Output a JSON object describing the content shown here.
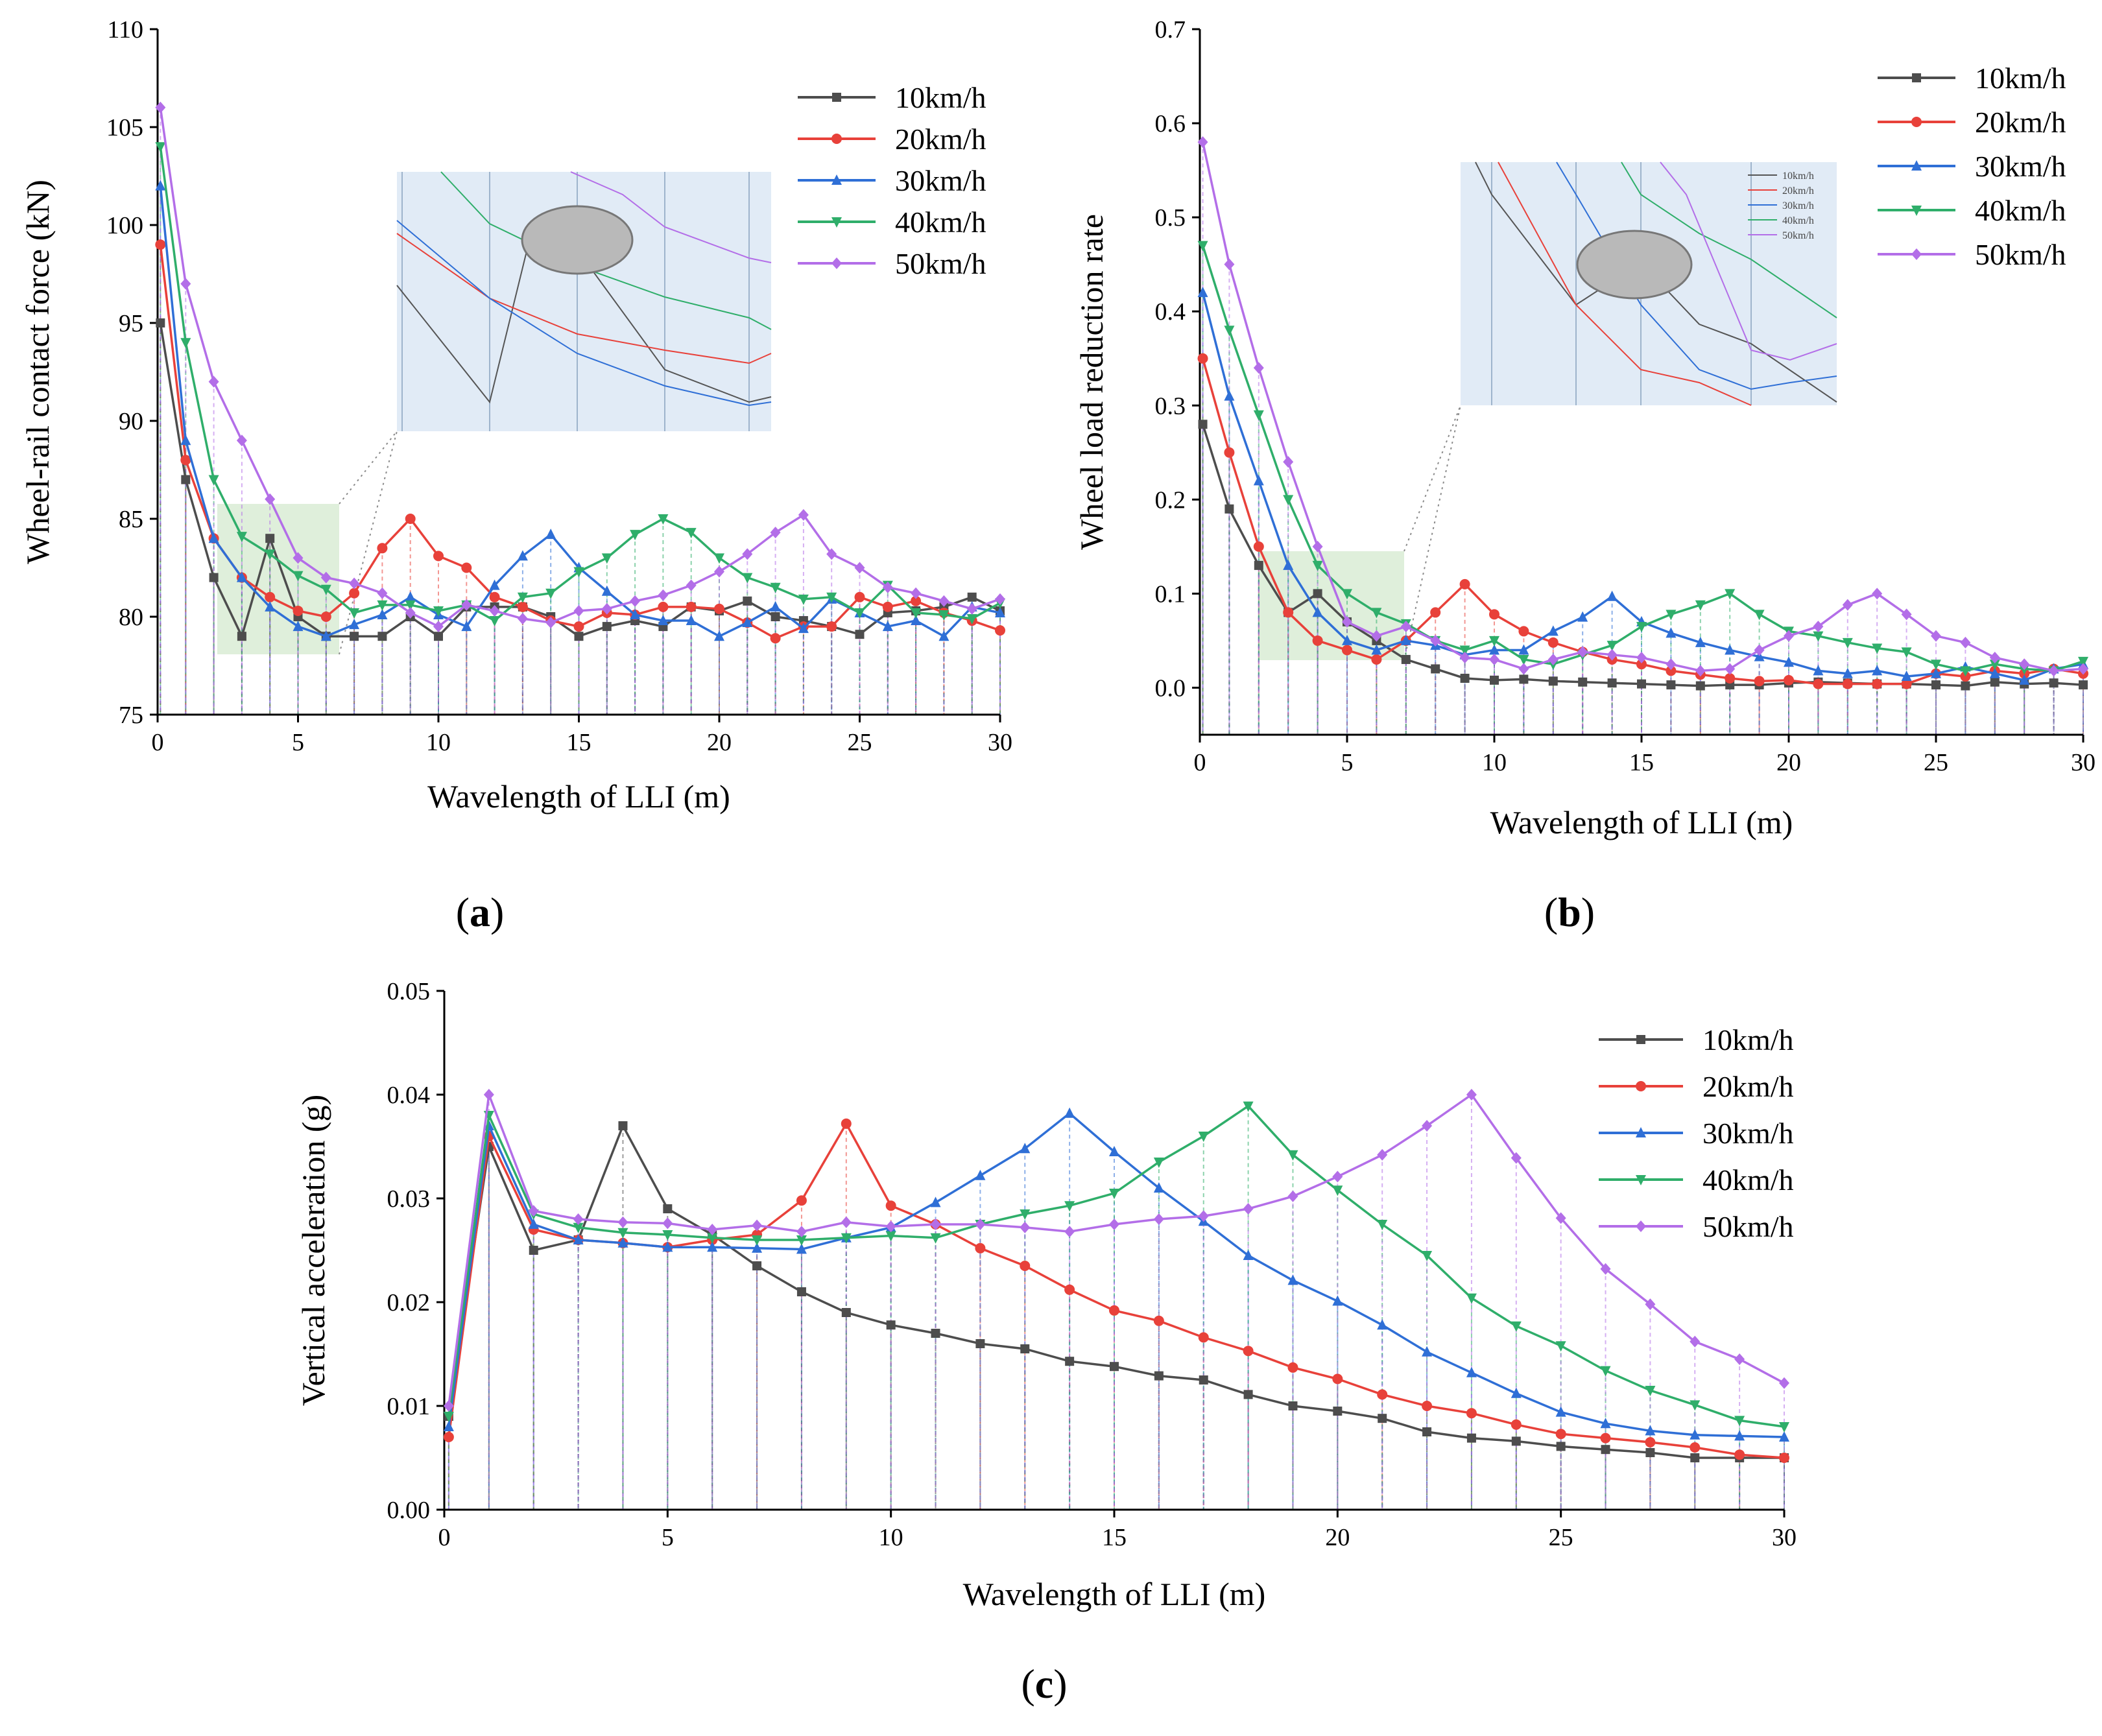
{
  "chart_data": [
    {
      "id": "a",
      "type": "line",
      "panel_label": "a",
      "xlabel": "Wavelength of LLI (m)",
      "ylabel": "Wheel-rail contact force (kN)",
      "xlim": [
        0,
        30
      ],
      "ylim": [
        75,
        110
      ],
      "xticks": [
        0,
        5,
        10,
        15,
        20,
        25,
        30
      ],
      "yticks": [
        75,
        80,
        85,
        90,
        95,
        100,
        105,
        110
      ],
      "x": [
        0.1,
        1,
        2,
        3,
        4,
        5,
        6,
        7,
        8,
        9,
        10,
        11,
        12,
        13,
        14,
        15,
        16,
        17,
        18,
        19,
        20,
        21,
        22,
        23,
        24,
        25,
        26,
        27,
        28,
        29,
        30
      ],
      "legend_position": "top-right",
      "series": [
        {
          "name": "10km/h",
          "color": "#4d4d4d",
          "marker": "square",
          "values": [
            95,
            87,
            82,
            79,
            84,
            80,
            79,
            79,
            79,
            80,
            79,
            80.5,
            80.5,
            80.5,
            80,
            79,
            79.5,
            79.8,
            79.5,
            80.5,
            80.3,
            80.8,
            80,
            79.8,
            79.5,
            79.1,
            80.2,
            80.3,
            80.5,
            81,
            80.3
          ]
        },
        {
          "name": "20km/h",
          "color": "#e8413a",
          "marker": "circle",
          "values": [
            99,
            88,
            84,
            82,
            81,
            80.3,
            80,
            81.2,
            83.5,
            85,
            83.1,
            82.5,
            81,
            80.5,
            79.8,
            79.5,
            80.2,
            80.1,
            80.5,
            80.5,
            80.4,
            79.7,
            78.9,
            79.5,
            79.5,
            81,
            80.5,
            80.8,
            80.2,
            79.8,
            79.3
          ]
        },
        {
          "name": "30km/h",
          "color": "#2f6fd6",
          "marker": "triangle-up",
          "values": [
            102,
            89,
            84,
            82,
            80.5,
            79.5,
            79,
            79.6,
            80.1,
            81,
            80.1,
            79.5,
            81.6,
            83.1,
            84.2,
            82.5,
            81.3,
            80.1,
            79.8,
            79.8,
            79,
            79.7,
            80.5,
            79.4,
            80.9,
            80.2,
            79.5,
            79.8,
            79,
            80.5,
            80.2
          ]
        },
        {
          "name": "40km/h",
          "color": "#2fae6a",
          "marker": "triangle-down",
          "values": [
            104,
            94,
            87,
            84.1,
            83.2,
            82.1,
            81.4,
            80.2,
            80.6,
            80.6,
            80.3,
            80.6,
            79.8,
            81,
            81.2,
            82.3,
            83,
            84.2,
            85,
            84.3,
            83,
            82,
            81.5,
            80.9,
            81,
            80.2,
            81.6,
            80.2,
            80.1,
            79.9,
            80.7
          ]
        },
        {
          "name": "50km/h",
          "color": "#b36ee8",
          "marker": "diamond",
          "values": [
            106,
            97,
            92,
            89,
            86,
            83,
            82,
            81.7,
            81.2,
            80.2,
            79.5,
            80.6,
            80.3,
            79.9,
            79.7,
            80.3,
            80.4,
            80.8,
            81.1,
            81.6,
            82.3,
            83.2,
            84.3,
            85.2,
            83.2,
            82.5,
            81.5,
            81.2,
            80.8,
            80.4,
            80.9
          ]
        }
      ]
    },
    {
      "id": "b",
      "type": "line",
      "panel_label": "b",
      "xlabel": "Wavelength of LLI (m)",
      "ylabel": "Wheel load reduction rate",
      "xlim": [
        0,
        30
      ],
      "ylim": [
        -0.05,
        0.7
      ],
      "xticks": [
        0,
        5,
        10,
        15,
        20,
        25,
        30
      ],
      "yticks": [
        0.0,
        0.1,
        0.2,
        0.3,
        0.4,
        0.5,
        0.6,
        0.7
      ],
      "x": [
        0.1,
        1,
        2,
        3,
        4,
        5,
        6,
        7,
        8,
        9,
        10,
        11,
        12,
        13,
        14,
        15,
        16,
        17,
        18,
        19,
        20,
        21,
        22,
        23,
        24,
        25,
        26,
        27,
        28,
        29,
        30
      ],
      "legend_position": "top-right",
      "series": [
        {
          "name": "10km/h",
          "color": "#4d4d4d",
          "marker": "square",
          "values": [
            0.28,
            0.19,
            0.13,
            0.08,
            0.1,
            0.07,
            0.05,
            0.03,
            0.02,
            0.01,
            0.008,
            0.009,
            0.007,
            0.006,
            0.005,
            0.004,
            0.003,
            0.002,
            0.003,
            0.003,
            0.005,
            0.006,
            0.005,
            0.004,
            0.004,
            0.003,
            0.002,
            0.006,
            0.004,
            0.005,
            0.003
          ]
        },
        {
          "name": "20km/h",
          "color": "#e8413a",
          "marker": "circle",
          "values": [
            0.35,
            0.25,
            0.15,
            0.08,
            0.05,
            0.04,
            0.03,
            0.05,
            0.08,
            0.11,
            0.078,
            0.06,
            0.048,
            0.038,
            0.03,
            0.025,
            0.018,
            0.014,
            0.01,
            0.007,
            0.008,
            0.004,
            0.004,
            0.004,
            0.004,
            0.015,
            0.012,
            0.018,
            0.015,
            0.02,
            0.015
          ]
        },
        {
          "name": "30km/h",
          "color": "#2f6fd6",
          "marker": "triangle-up",
          "values": [
            0.42,
            0.31,
            0.22,
            0.13,
            0.08,
            0.05,
            0.04,
            0.05,
            0.045,
            0.035,
            0.04,
            0.04,
            0.06,
            0.075,
            0.097,
            0.07,
            0.058,
            0.048,
            0.04,
            0.033,
            0.027,
            0.018,
            0.015,
            0.018,
            0.012,
            0.015,
            0.022,
            0.015,
            0.008,
            0.02,
            0.025
          ]
        },
        {
          "name": "40km/h",
          "color": "#2fae6a",
          "marker": "triangle-down",
          "values": [
            0.47,
            0.38,
            0.29,
            0.2,
            0.13,
            0.1,
            0.08,
            0.068,
            0.05,
            0.04,
            0.05,
            0.03,
            0.025,
            0.035,
            0.045,
            0.065,
            0.078,
            0.088,
            0.1,
            0.078,
            0.06,
            0.055,
            0.048,
            0.042,
            0.038,
            0.025,
            0.018,
            0.025,
            0.02,
            0.018,
            0.028
          ]
        },
        {
          "name": "50km/h",
          "color": "#b36ee8",
          "marker": "diamond",
          "values": [
            0.58,
            0.45,
            0.34,
            0.24,
            0.15,
            0.07,
            0.055,
            0.065,
            0.05,
            0.032,
            0.03,
            0.02,
            0.03,
            0.038,
            0.035,
            0.032,
            0.025,
            0.018,
            0.02,
            0.04,
            0.055,
            0.065,
            0.088,
            0.1,
            0.078,
            0.055,
            0.048,
            0.032,
            0.025,
            0.018,
            0.02
          ]
        }
      ]
    },
    {
      "id": "c",
      "type": "line",
      "panel_label": "c",
      "xlabel": "Wavelength of LLI (m)",
      "ylabel": "Vertical acceleration (g)",
      "xlim": [
        0,
        30
      ],
      "ylim": [
        0,
        0.05
      ],
      "xticks": [
        0,
        5,
        10,
        15,
        20,
        25,
        30
      ],
      "yticks": [
        0.0,
        0.01,
        0.02,
        0.03,
        0.04,
        0.05
      ],
      "x": [
        0.1,
        1,
        2,
        3,
        4,
        5,
        6,
        7,
        8,
        9,
        10,
        11,
        12,
        13,
        14,
        15,
        16,
        17,
        18,
        19,
        20,
        21,
        22,
        23,
        24,
        25,
        26,
        27,
        28,
        29,
        30
      ],
      "legend_position": "top-right",
      "series": [
        {
          "name": "10km/h",
          "color": "#4d4d4d",
          "marker": "square",
          "values": [
            0.009,
            0.035,
            0.025,
            0.026,
            0.037,
            0.029,
            0.0265,
            0.0235,
            0.021,
            0.019,
            0.0178,
            0.017,
            0.016,
            0.0155,
            0.0143,
            0.0138,
            0.0129,
            0.0125,
            0.0111,
            0.01,
            0.0095,
            0.0088,
            0.0075,
            0.0069,
            0.0066,
            0.0061,
            0.0058,
            0.0055,
            0.005,
            0.005,
            0.005
          ]
        },
        {
          "name": "20km/h",
          "color": "#e8413a",
          "marker": "circle",
          "values": [
            0.007,
            0.036,
            0.027,
            0.026,
            0.0257,
            0.0253,
            0.026,
            0.0265,
            0.0298,
            0.0372,
            0.0293,
            0.0275,
            0.0252,
            0.0235,
            0.0212,
            0.0192,
            0.0182,
            0.0166,
            0.0153,
            0.0137,
            0.0126,
            0.0111,
            0.01,
            0.0093,
            0.0082,
            0.0073,
            0.0069,
            0.0065,
            0.006,
            0.0053,
            0.005
          ]
        },
        {
          "name": "30km/h",
          "color": "#2f6fd6",
          "marker": "triangle-up",
          "values": [
            0.008,
            0.037,
            0.0275,
            0.026,
            0.0257,
            0.0253,
            0.0253,
            0.0252,
            0.0251,
            0.0262,
            0.0272,
            0.0296,
            0.0322,
            0.0348,
            0.0382,
            0.0345,
            0.031,
            0.0278,
            0.0245,
            0.0221,
            0.0201,
            0.0178,
            0.0152,
            0.0132,
            0.0112,
            0.0094,
            0.0083,
            0.0076,
            0.0072,
            0.0071,
            0.007
          ]
        },
        {
          "name": "40km/h",
          "color": "#2fae6a",
          "marker": "triangle-down",
          "values": [
            0.009,
            0.038,
            0.0285,
            0.0272,
            0.0267,
            0.0265,
            0.0262,
            0.026,
            0.026,
            0.0262,
            0.0264,
            0.0262,
            0.0275,
            0.0285,
            0.0293,
            0.0305,
            0.0335,
            0.036,
            0.0389,
            0.0342,
            0.0308,
            0.0275,
            0.0245,
            0.0204,
            0.0177,
            0.0158,
            0.0134,
            0.0115,
            0.0101,
            0.0086,
            0.008
          ]
        },
        {
          "name": "50km/h",
          "color": "#b36ee8",
          "marker": "diamond",
          "values": [
            0.01,
            0.04,
            0.0288,
            0.028,
            0.0277,
            0.0276,
            0.027,
            0.0274,
            0.0268,
            0.0277,
            0.0273,
            0.0275,
            0.0275,
            0.0272,
            0.0268,
            0.0275,
            0.028,
            0.0283,
            0.029,
            0.0302,
            0.0321,
            0.0342,
            0.037,
            0.04,
            0.0339,
            0.0281,
            0.0232,
            0.0198,
            0.0162,
            0.0145,
            0.0122
          ]
        }
      ]
    }
  ]
}
